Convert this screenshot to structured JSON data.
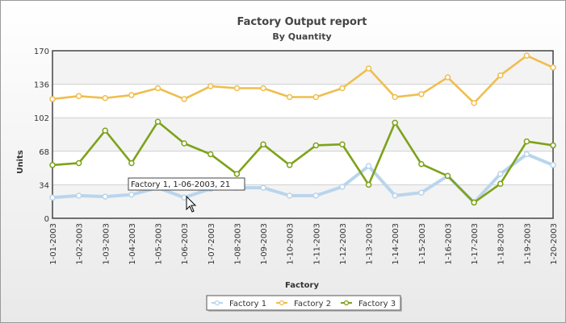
{
  "chart_data": {
    "type": "line",
    "title": "Factory Output report",
    "subtitle": "By Quantity",
    "xlabel": "Factory",
    "ylabel": "Units",
    "ylim": [
      0,
      170
    ],
    "yticks": [
      "0",
      "34",
      "68",
      "102",
      "136",
      "170"
    ],
    "categories": [
      "1-01-2003",
      "1-02-2003",
      "1-03-2003",
      "1-04-2003",
      "1-05-2003",
      "1-06-2003",
      "1-07-2003",
      "1-08-2003",
      "1-09-2003",
      "1-10-2003",
      "1-11-2003",
      "1-12-2003",
      "1-13-2003",
      "1-14-2003",
      "1-15-2003",
      "1-16-2003",
      "1-17-2003",
      "1-18-2003",
      "1-19-2003",
      "1-20-2003"
    ],
    "series": [
      {
        "name": "Factory 1",
        "color": "#b9d5ec",
        "values": [
          21,
          23,
          22,
          24,
          31,
          21,
          30,
          31,
          31,
          23,
          23,
          32,
          53,
          23,
          26,
          43,
          16,
          45,
          65,
          54
        ]
      },
      {
        "name": "Factory 2",
        "color": "#efbe4e",
        "values": [
          121,
          124,
          122,
          125,
          132,
          121,
          134,
          132,
          132,
          123,
          123,
          132,
          152,
          123,
          126,
          143,
          117,
          145,
          165,
          153
        ]
      },
      {
        "name": "Factory 3",
        "color": "#7ea21b",
        "values": [
          54,
          56,
          89,
          56,
          98,
          76,
          65,
          45,
          75,
          54,
          74,
          75,
          34,
          97,
          55,
          43,
          16,
          35,
          78,
          74
        ]
      }
    ],
    "tooltip": "Factory 1, 1-06-2003, 21",
    "grid": true,
    "legend_position": "bottom"
  }
}
